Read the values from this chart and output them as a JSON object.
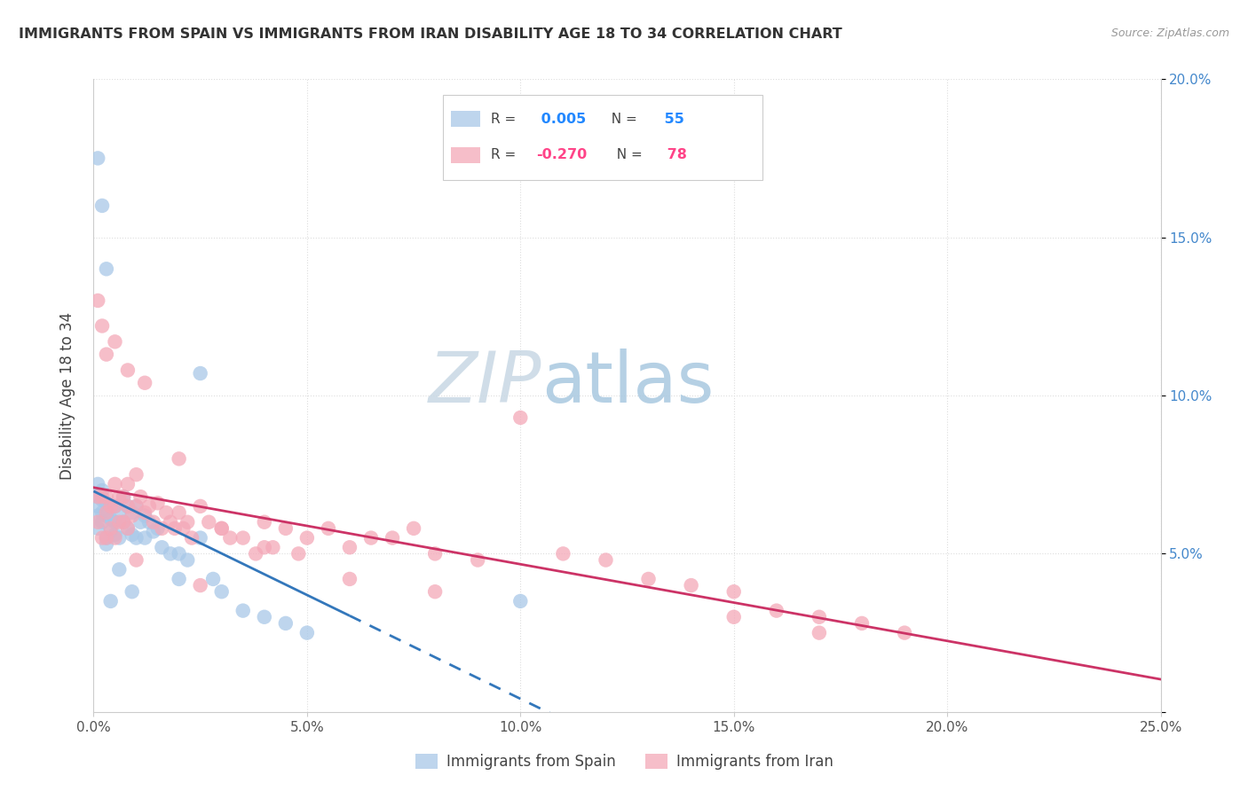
{
  "title": "IMMIGRANTS FROM SPAIN VS IMMIGRANTS FROM IRAN DISABILITY AGE 18 TO 34 CORRELATION CHART",
  "source": "Source: ZipAtlas.com",
  "ylabel": "Disability Age 18 to 34",
  "xlim": [
    0.0,
    0.25
  ],
  "ylim": [
    0.0,
    0.2
  ],
  "spain_color": "#a8c8e8",
  "iran_color": "#f4a8b8",
  "spain_label": "Immigrants from Spain",
  "iran_label": "Immigrants from Iran",
  "spain_R": "0.005",
  "spain_N": "55",
  "iran_R": "-0.270",
  "iran_N": "78",
  "trend_spain": "#3377bb",
  "trend_iran": "#cc3366",
  "dashed_color": "#aabbcc",
  "watermark1": "ZIP",
  "watermark2": "atlas",
  "spain_x": [
    0.001,
    0.001,
    0.001,
    0.001,
    0.001,
    0.002,
    0.002,
    0.002,
    0.002,
    0.003,
    0.003,
    0.003,
    0.003,
    0.004,
    0.004,
    0.004,
    0.005,
    0.005,
    0.005,
    0.006,
    0.006,
    0.007,
    0.007,
    0.008,
    0.008,
    0.009,
    0.009,
    0.01,
    0.01,
    0.011,
    0.012,
    0.012,
    0.013,
    0.014,
    0.015,
    0.016,
    0.018,
    0.02,
    0.02,
    0.022,
    0.025,
    0.028,
    0.03,
    0.035,
    0.04,
    0.045,
    0.05,
    0.003,
    0.002,
    0.001,
    0.004,
    0.006,
    0.009,
    0.025,
    0.1
  ],
  "spain_y": [
    0.175,
    0.068,
    0.065,
    0.062,
    0.058,
    0.16,
    0.067,
    0.063,
    0.06,
    0.14,
    0.066,
    0.062,
    0.055,
    0.065,
    0.061,
    0.057,
    0.065,
    0.06,
    0.056,
    0.063,
    0.055,
    0.068,
    0.06,
    0.065,
    0.058,
    0.063,
    0.056,
    0.065,
    0.055,
    0.06,
    0.062,
    0.055,
    0.06,
    0.057,
    0.058,
    0.052,
    0.05,
    0.05,
    0.042,
    0.048,
    0.055,
    0.042,
    0.038,
    0.032,
    0.03,
    0.028,
    0.025,
    0.053,
    0.07,
    0.072,
    0.035,
    0.045,
    0.038,
    0.107,
    0.035
  ],
  "iran_x": [
    0.001,
    0.001,
    0.001,
    0.002,
    0.002,
    0.002,
    0.003,
    0.003,
    0.003,
    0.004,
    0.004,
    0.005,
    0.005,
    0.005,
    0.006,
    0.006,
    0.007,
    0.007,
    0.008,
    0.008,
    0.008,
    0.009,
    0.01,
    0.01,
    0.011,
    0.012,
    0.013,
    0.014,
    0.015,
    0.016,
    0.017,
    0.018,
    0.019,
    0.02,
    0.021,
    0.022,
    0.023,
    0.025,
    0.027,
    0.03,
    0.032,
    0.035,
    0.038,
    0.04,
    0.042,
    0.045,
    0.048,
    0.05,
    0.055,
    0.06,
    0.065,
    0.07,
    0.075,
    0.08,
    0.09,
    0.1,
    0.11,
    0.12,
    0.13,
    0.14,
    0.15,
    0.16,
    0.17,
    0.18,
    0.19,
    0.003,
    0.005,
    0.008,
    0.012,
    0.02,
    0.03,
    0.04,
    0.06,
    0.08,
    0.15,
    0.17,
    0.01,
    0.025
  ],
  "iran_y": [
    0.13,
    0.068,
    0.06,
    0.122,
    0.068,
    0.055,
    0.068,
    0.063,
    0.055,
    0.065,
    0.058,
    0.072,
    0.065,
    0.055,
    0.068,
    0.06,
    0.068,
    0.06,
    0.072,
    0.065,
    0.058,
    0.062,
    0.075,
    0.065,
    0.068,
    0.063,
    0.065,
    0.06,
    0.066,
    0.058,
    0.063,
    0.06,
    0.058,
    0.063,
    0.058,
    0.06,
    0.055,
    0.065,
    0.06,
    0.058,
    0.055,
    0.055,
    0.05,
    0.06,
    0.052,
    0.058,
    0.05,
    0.055,
    0.058,
    0.052,
    0.055,
    0.055,
    0.058,
    0.05,
    0.048,
    0.093,
    0.05,
    0.048,
    0.042,
    0.04,
    0.038,
    0.032,
    0.03,
    0.028,
    0.025,
    0.113,
    0.117,
    0.108,
    0.104,
    0.08,
    0.058,
    0.052,
    0.042,
    0.038,
    0.03,
    0.025,
    0.048,
    0.04
  ]
}
